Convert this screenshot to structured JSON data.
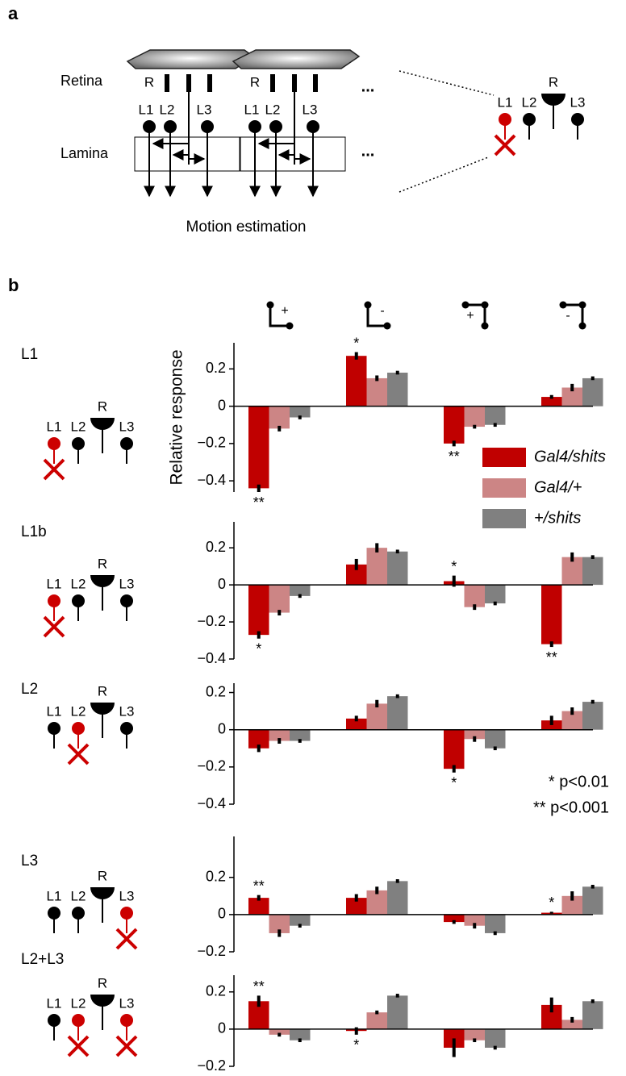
{
  "panel_a": {
    "label": "a",
    "retina": "Retina",
    "lamina": "Lamina",
    "photoreceptor": "R",
    "neurons": [
      "L1",
      "L2",
      "L3"
    ],
    "ellipsis": "...",
    "output": "Motion estimation",
    "zoom_labels": [
      "L1",
      "L2",
      "R",
      "L3"
    ]
  },
  "panel_b": {
    "label": "b",
    "stimuli": [
      "+",
      "-",
      "+",
      "-"
    ],
    "neuron_labels": [
      "L1",
      "L2",
      "R",
      "L3"
    ]
  },
  "chart_data": [
    {
      "type": "bar",
      "title": "L1",
      "y_label": "Relative response",
      "legend": "upper right",
      "categories": [
        null,
        null,
        null,
        null
      ],
      "ylim": [
        -0.46,
        0.34
      ],
      "yticks": [
        {
          "value": -0.4,
          "label": "−0.4"
        },
        {
          "value": -0.2,
          "label": "−0.2"
        },
        0,
        0.2
      ],
      "series": [
        {
          "name": "Gal4/shits",
          "color": "#c00000",
          "values": [
            -0.44,
            0.27,
            -0.2,
            0.05
          ],
          "errors": [
            0.02,
            0.02,
            0.015,
            0.01
          ],
          "significance": [
            "**",
            "*",
            "**",
            null
          ]
        },
        {
          "name": "Gal4/+",
          "color": "#cc8585",
          "values": [
            -0.12,
            0.15,
            -0.11,
            0.1
          ],
          "errors": [
            0.015,
            0.015,
            0.01,
            0.02
          ]
        },
        {
          "name": "+/shits",
          "color": "#808080",
          "values": [
            -0.06,
            0.18,
            -0.1,
            0.15
          ],
          "errors": [
            0.01,
            0.01,
            0.01,
            0.01
          ]
        }
      ]
    },
    {
      "type": "bar",
      "title": "L1b",
      "categories": [
        null,
        null,
        null,
        null
      ],
      "ylim": [
        -0.4,
        0.34
      ],
      "yticks": [
        {
          "value": -0.4,
          "label": "−0.4"
        },
        {
          "value": -0.2,
          "label": "−0.2"
        },
        0,
        0.2
      ],
      "series": [
        {
          "color": "#c00000",
          "values": [
            -0.27,
            0.11,
            0.02,
            -0.32
          ],
          "errors": [
            0.02,
            0.03,
            0.03,
            0.015
          ],
          "significance": [
            "*",
            null,
            "*",
            "**"
          ]
        },
        {
          "color": "#cc8585",
          "values": [
            -0.15,
            0.2,
            -0.12,
            0.15
          ],
          "errors": [
            0.015,
            0.025,
            0.015,
            0.025
          ]
        },
        {
          "color": "#808080",
          "values": [
            -0.06,
            0.18,
            -0.1,
            0.15
          ],
          "errors": [
            0.01,
            0.01,
            0.01,
            0.01
          ]
        }
      ]
    },
    {
      "type": "bar",
      "title": "L2",
      "annotations": [
        "* p<0.01",
        "** p<0.001"
      ],
      "categories": [
        null,
        null,
        null,
        null
      ],
      "ylim": [
        -0.4,
        0.25
      ],
      "yticks": [
        {
          "value": -0.4,
          "label": "−0.4"
        },
        {
          "value": -0.2,
          "label": "−0.2"
        },
        0,
        0.2
      ],
      "series": [
        {
          "color": "#c00000",
          "values": [
            -0.1,
            0.06,
            -0.21,
            0.05
          ],
          "errors": [
            0.02,
            0.015,
            0.02,
            0.025
          ],
          "significance": [
            null,
            null,
            "*",
            null
          ]
        },
        {
          "color": "#cc8585",
          "values": [
            -0.06,
            0.14,
            -0.05,
            0.1
          ],
          "errors": [
            0.015,
            0.02,
            0.015,
            0.02
          ]
        },
        {
          "color": "#808080",
          "values": [
            -0.06,
            0.18,
            -0.1,
            0.15
          ],
          "errors": [
            0.01,
            0.01,
            0.01,
            0.01
          ]
        }
      ]
    },
    {
      "type": "bar",
      "title": "L3",
      "categories": [
        null,
        null,
        null,
        null
      ],
      "ylim": [
        -0.2,
        0.42
      ],
      "yticks": [
        {
          "value": -0.2,
          "label": "−0.2"
        },
        0,
        0.2
      ],
      "series": [
        {
          "color": "#c00000",
          "values": [
            0.09,
            0.09,
            -0.04,
            0.01
          ],
          "errors": [
            0.015,
            0.02,
            0.01,
            0.005
          ],
          "significance": [
            "**",
            null,
            null,
            "*"
          ]
        },
        {
          "color": "#cc8585",
          "values": [
            -0.1,
            0.13,
            -0.06,
            0.1
          ],
          "errors": [
            0.02,
            0.02,
            0.015,
            0.025
          ]
        },
        {
          "color": "#808080",
          "values": [
            -0.06,
            0.18,
            -0.1,
            0.15
          ],
          "errors": [
            0.01,
            0.01,
            0.01,
            0.01
          ]
        }
      ]
    },
    {
      "type": "bar",
      "title": "L2+L3",
      "categories": [
        null,
        null,
        null,
        null
      ],
      "ylim": [
        -0.2,
        0.29
      ],
      "yticks": [
        {
          "value": -0.2,
          "label": "−0.2"
        },
        0,
        0.2
      ],
      "series": [
        {
          "color": "#c00000",
          "values": [
            0.15,
            -0.01,
            -0.1,
            0.13
          ],
          "errors": [
            0.03,
            0.02,
            0.05,
            0.04
          ],
          "significance": [
            "**",
            "*",
            null,
            null
          ]
        },
        {
          "color": "#cc8585",
          "values": [
            -0.03,
            0.09,
            -0.06,
            0.05
          ],
          "errors": [
            0.01,
            0.01,
            0.01,
            0.015
          ]
        },
        {
          "color": "#808080",
          "values": [
            -0.06,
            0.18,
            -0.1,
            0.15
          ],
          "errors": [
            0.01,
            0.01,
            0.01,
            0.01
          ]
        }
      ]
    }
  ]
}
